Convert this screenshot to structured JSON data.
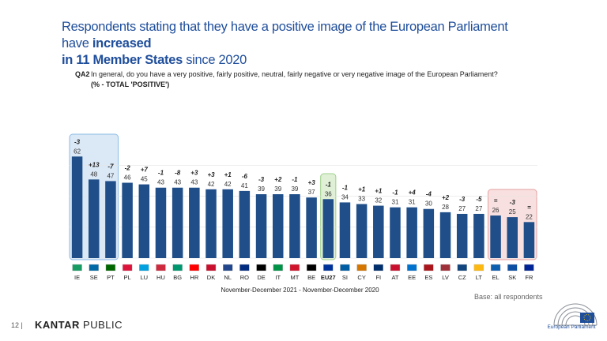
{
  "title": {
    "line1": "Respondents stating that they have a positive image of the European Parliament have ",
    "line1_bold": "increased",
    "line2_bold": "in 11 Member States",
    "line2": " since 2020"
  },
  "question": {
    "code": "QA2",
    "text": "In general, do you have a very positive, fairly positive, neutral, fairly negative or very negative image of the European Parliament?",
    "sub": "(% - TOTAL 'POSITIVE')"
  },
  "chart_data": {
    "type": "bar",
    "xlabel": "November-December 2021 - November-December 2020",
    "ylabel": "",
    "ylim": [
      0,
      70
    ],
    "grid": true,
    "categories": [
      "IE",
      "SE",
      "PT",
      "PL",
      "LU",
      "HU",
      "BG",
      "HR",
      "DK",
      "NL",
      "RO",
      "DE",
      "IT",
      "MT",
      "BE",
      "EU27",
      "SI",
      "CY",
      "FI",
      "AT",
      "EE",
      "ES",
      "LV",
      "CZ",
      "LT",
      "EL",
      "SK",
      "FR"
    ],
    "values": [
      62,
      48,
      47,
      46,
      45,
      43,
      43,
      43,
      42,
      42,
      41,
      39,
      39,
      39,
      37,
      36,
      34,
      33,
      32,
      31,
      31,
      30,
      28,
      27,
      27,
      26,
      25,
      22
    ],
    "changes": [
      "-3",
      "+13",
      "-7",
      "-2",
      "+7",
      "-1",
      "-8",
      "+3",
      "+3",
      "+1",
      "-6",
      "-3",
      "+2",
      "-1",
      "+3",
      "-1",
      "-1",
      "+1",
      "+1",
      "-1",
      "+4",
      "-4",
      "+2",
      "-3",
      "-5",
      "=",
      "-3",
      "="
    ],
    "highlight_blue": [
      "IE",
      "SE",
      "PT"
    ],
    "highlight_green": [
      "EU27"
    ],
    "highlight_red": [
      "EL",
      "SK",
      "FR"
    ],
    "colors": {
      "bar": "#1f4e89",
      "eu_bar": "#1f4e89",
      "blue_box": "#dbe9f7",
      "green_box": "#dff0d6",
      "red_box": "#f8e0e0"
    }
  },
  "footer": {
    "page": "12",
    "brand_bold": "KANTAR",
    "brand": " PUBLIC",
    "base": "Base: all respondents",
    "ep_name": "European Parliament"
  }
}
